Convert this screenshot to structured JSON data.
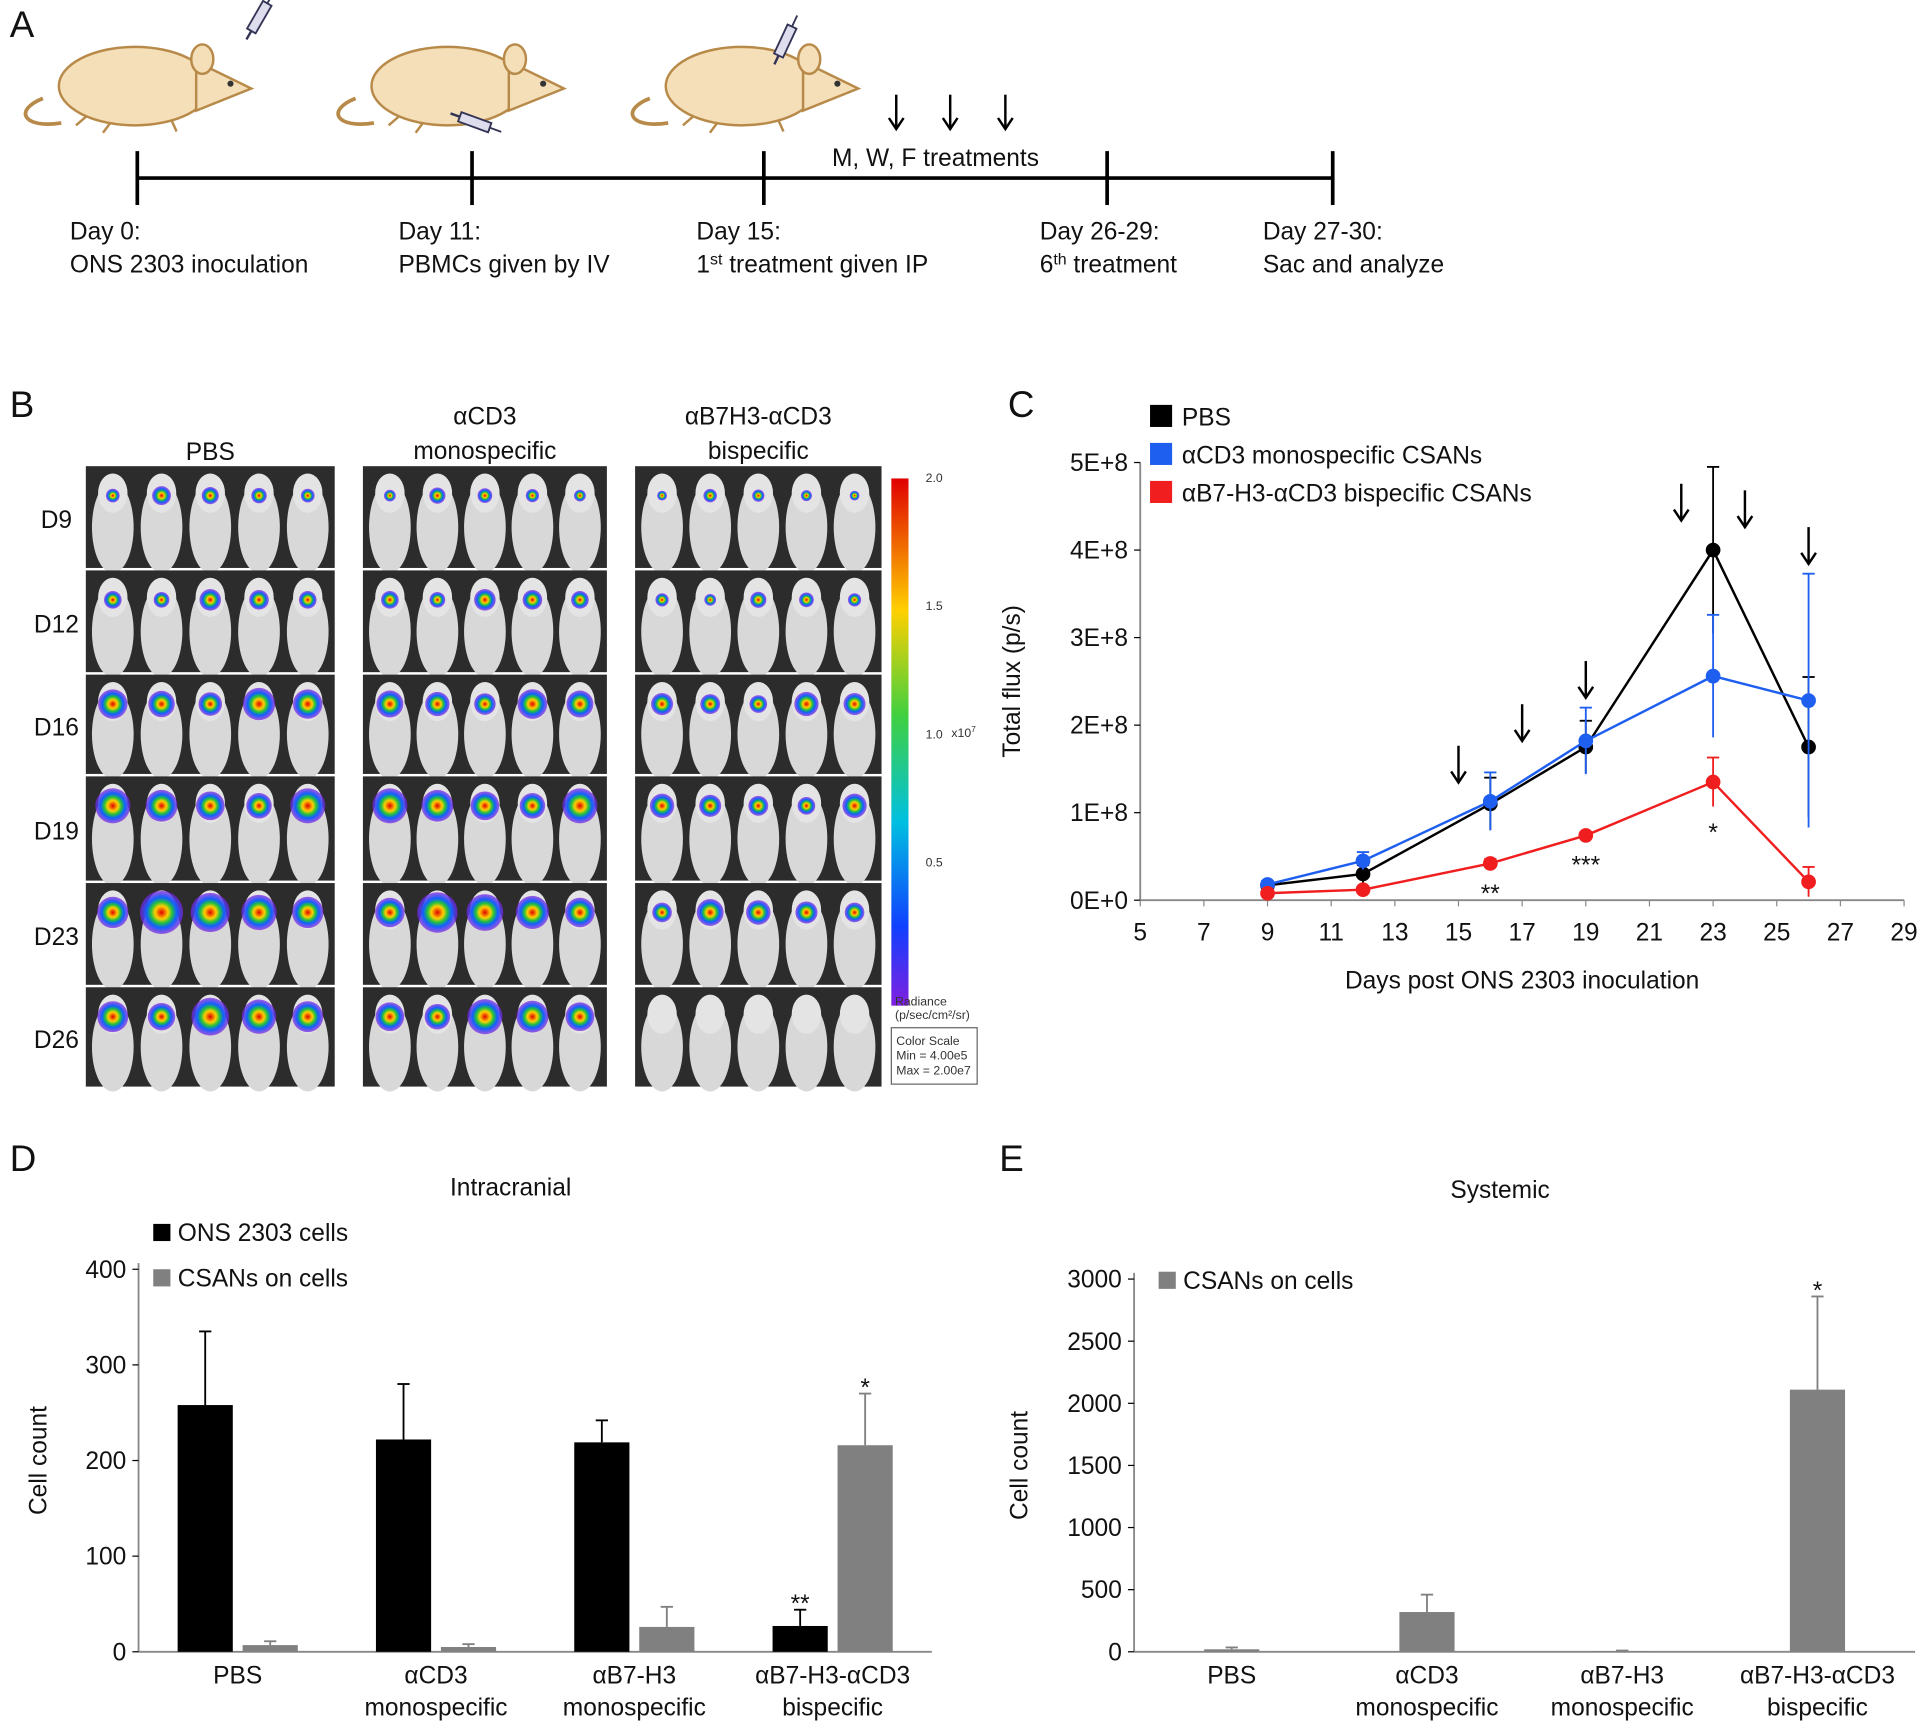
{
  "panel_labels": [
    "A",
    "B",
    "C",
    "D",
    "E"
  ],
  "timeline": {
    "events": [
      {
        "day": "Day 0:",
        "text": [
          "ONS 2303 inoculation"
        ]
      },
      {
        "day": "Day 11:",
        "text": [
          "PBMCs given by IV"
        ]
      },
      {
        "day": "Day 15:",
        "text": [
          "1",
          "st",
          " treatment given IP"
        ]
      },
      {
        "day": "Day 26-29:",
        "text": [
          "6",
          "th",
          " treatment"
        ]
      },
      {
        "day": "Day 27-30:",
        "text": [
          "Sac and analyze"
        ]
      }
    ],
    "treatments": "M, W, F treatments"
  },
  "imaging": {
    "groups": [
      [
        "PBS"
      ],
      [
        "αCD3",
        "monospecific"
      ],
      [
        "αB7H3-αCD3",
        "bispecific"
      ]
    ],
    "days": [
      "D9",
      "D12",
      "D16",
      "D19",
      "D23",
      "D26"
    ],
    "colorbar_ticks": [
      "2.0",
      "1.5",
      "1.0",
      "0.5"
    ],
    "colorbar_unit": "x10",
    "colorbar_exponent": "7",
    "radiance": [
      "Radiance",
      "(p/sec/cm²/sr)"
    ],
    "color_scale": [
      "Color Scale",
      "Min = 4.00e5",
      "Max = 2.00e7"
    ]
  },
  "chart_data": [
    {
      "type": "line",
      "x": [
        9,
        12,
        16,
        19,
        23,
        26
      ],
      "xlim": [
        5,
        29
      ],
      "xticks": [
        5,
        7,
        9,
        11,
        13,
        15,
        17,
        19,
        21,
        23,
        25,
        27,
        29
      ],
      "ylim": [
        0,
        500000000
      ],
      "yticks": [
        {
          "value": 0,
          "label": "0E+0"
        },
        {
          "value": 100000000,
          "label": "1E+8"
        },
        {
          "value": 200000000,
          "label": "2E+8"
        },
        {
          "value": 300000000,
          "label": "3E+8"
        },
        {
          "value": 400000000,
          "label": "4E+8"
        },
        {
          "value": 500000000,
          "label": "5E+8"
        }
      ],
      "x_label": "Days post ONS 2303 inoculation",
      "y_label": "Total flux (p/s)",
      "grid": false,
      "arrows_at": [
        15,
        17,
        19,
        22,
        24,
        26
      ],
      "series": [
        {
          "name": "PBS",
          "color": "#000000",
          "values": [
            17000000,
            30000000,
            110000000,
            175000000,
            400000000,
            175000000
          ],
          "errors": [
            5000000,
            10000000,
            30000000,
            30000000,
            95000000,
            80000000
          ]
        },
        {
          "name": "αCD3 monospecific CSANs",
          "color": "#1f5ff0",
          "values": [
            18000000,
            45000000,
            113000000,
            182000000,
            256000000,
            228000000
          ],
          "errors": [
            3000000,
            10000000,
            33000000,
            38000000,
            70000000,
            145000000
          ]
        },
        {
          "name": "αB7-H3-αCD3 bispecific CSANs",
          "color": "#f01e1e",
          "values": [
            8000000,
            12000000,
            42000000,
            74000000,
            135000000,
            21000000
          ],
          "errors": [
            3000000,
            3000000,
            5000000,
            4000000,
            28000000,
            17000000
          ],
          "annotations": [
            null,
            null,
            "**",
            "***",
            "*",
            null
          ]
        }
      ]
    },
    {
      "type": "bar",
      "title": "Intracranial",
      "y_label": "Cell count",
      "categories": [
        [
          "PBS"
        ],
        [
          "αCD3",
          "monospecific"
        ],
        [
          "αB7-H3",
          "monospecific"
        ],
        [
          "αB7-H3-αCD3",
          "bispecific"
        ]
      ],
      "ylim": [
        0,
        400
      ],
      "yticks": [
        0,
        100,
        200,
        300,
        400
      ],
      "grid": false,
      "series": [
        {
          "name": "ONS 2303 cells",
          "color": "#000000",
          "values": [
            258,
            222,
            219,
            27
          ],
          "errors": [
            77,
            58,
            23,
            17
          ],
          "annotations": [
            null,
            null,
            null,
            "**"
          ]
        },
        {
          "name": "CSANs on cells",
          "color": "#808080",
          "values": [
            7,
            5,
            26,
            216
          ],
          "errors": [
            4,
            3,
            21,
            54
          ],
          "annotations": [
            null,
            null,
            null,
            "*"
          ]
        }
      ]
    },
    {
      "type": "bar",
      "title": "Systemic",
      "y_label": "Cell count",
      "categories": [
        [
          "PBS"
        ],
        [
          "αCD3",
          "monospecific"
        ],
        [
          "αB7-H3",
          "monospecific"
        ],
        [
          "αB7-H3-αCD3",
          "bispecific"
        ]
      ],
      "ylim": [
        0,
        3000
      ],
      "yticks": [
        0,
        500,
        1000,
        1500,
        2000,
        2500,
        3000
      ],
      "grid": false,
      "series": [
        {
          "name": "CSANs on cells",
          "color": "#808080",
          "values": [
            20,
            320,
            5,
            2110
          ],
          "errors": [
            15,
            140,
            5,
            750
          ],
          "annotations": [
            null,
            null,
            null,
            "*"
          ]
        }
      ]
    }
  ]
}
